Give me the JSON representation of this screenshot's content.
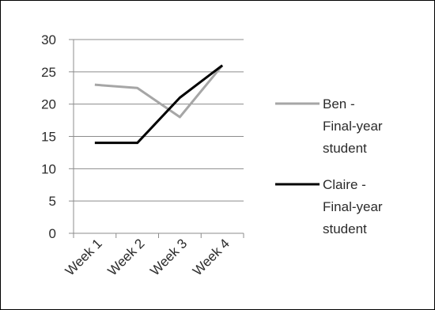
{
  "chart_data": {
    "type": "line",
    "title": "",
    "xlabel": "",
    "ylabel": "",
    "categories": [
      "Week 1",
      "Week 2",
      "Week 3",
      "Week 4"
    ],
    "ylim": [
      0,
      30
    ],
    "yticks": [
      0,
      5,
      10,
      15,
      20,
      25,
      30
    ],
    "grid": "horizontal",
    "legend_position": "right",
    "series": [
      {
        "name": "Ben - Final-year student",
        "legend_lines": [
          "Ben -",
          "Final-year",
          "student"
        ],
        "values": [
          23,
          22.5,
          18,
          26
        ],
        "color": "#a6a6a6"
      },
      {
        "name": "Claire - Final-year student",
        "legend_lines": [
          "Claire -",
          "Final-year",
          "student"
        ],
        "values": [
          14,
          14,
          21,
          26
        ],
        "color": "#000000"
      }
    ]
  }
}
